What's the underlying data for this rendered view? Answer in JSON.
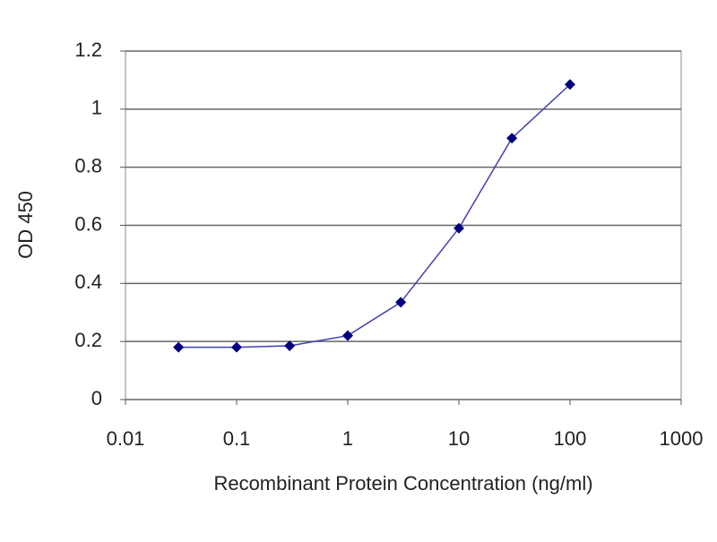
{
  "chart_data": {
    "type": "line",
    "y_label": "OD 450",
    "x_label": "Recombinant Protein Concentration (ng/ml)",
    "x": [
      0.03,
      0.1,
      0.3,
      1,
      3,
      10,
      30,
      100
    ],
    "series": [
      {
        "color": "#000080",
        "values": [
          0.18,
          0.18,
          0.185,
          0.22,
          0.335,
          0.59,
          0.9,
          1.085
        ]
      }
    ],
    "xscale": "log",
    "xlim": [
      0.01,
      1000
    ],
    "xticks": [
      0.01,
      0.1,
      1,
      10,
      100,
      1000
    ],
    "ylim": [
      0,
      1.2
    ],
    "yticks": [
      0,
      0.2,
      0.4,
      0.6,
      0.8,
      1,
      1.2
    ],
    "grid": true
  }
}
